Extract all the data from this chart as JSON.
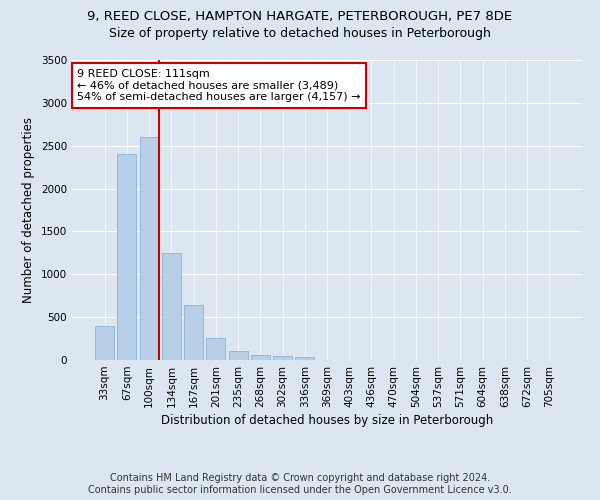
{
  "title_line1": "9, REED CLOSE, HAMPTON HARGATE, PETERBOROUGH, PE7 8DE",
  "title_line2": "Size of property relative to detached houses in Peterborough",
  "xlabel": "Distribution of detached houses by size in Peterborough",
  "ylabel": "Number of detached properties",
  "categories": [
    "33sqm",
    "67sqm",
    "100sqm",
    "134sqm",
    "167sqm",
    "201sqm",
    "235sqm",
    "268sqm",
    "302sqm",
    "336sqm",
    "369sqm",
    "403sqm",
    "436sqm",
    "470sqm",
    "504sqm",
    "537sqm",
    "571sqm",
    "604sqm",
    "638sqm",
    "672sqm",
    "705sqm"
  ],
  "values": [
    400,
    2400,
    2600,
    1250,
    640,
    260,
    110,
    60,
    45,
    35,
    0,
    0,
    0,
    0,
    0,
    0,
    0,
    0,
    0,
    0,
    0
  ],
  "bar_color": "#b8cfe8",
  "bar_edge_color": "#7aadd4",
  "vline_color": "#cc0000",
  "annotation_text": "9 REED CLOSE: 111sqm\n← 46% of detached houses are smaller (3,489)\n54% of semi-detached houses are larger (4,157) →",
  "annotation_box_color": "#ffffff",
  "annotation_box_edge": "#cc0000",
  "ylim": [
    0,
    3500
  ],
  "yticks": [
    0,
    500,
    1000,
    1500,
    2000,
    2500,
    3000,
    3500
  ],
  "background_color": "#dce6f0",
  "plot_bg_color": "#dce6f0",
  "footer_line1": "Contains HM Land Registry data © Crown copyright and database right 2024.",
  "footer_line2": "Contains public sector information licensed under the Open Government Licence v3.0.",
  "title_fontsize": 9.5,
  "subtitle_fontsize": 9,
  "axis_label_fontsize": 8.5,
  "tick_fontsize": 7.5,
  "annotation_fontsize": 8,
  "footer_fontsize": 7
}
